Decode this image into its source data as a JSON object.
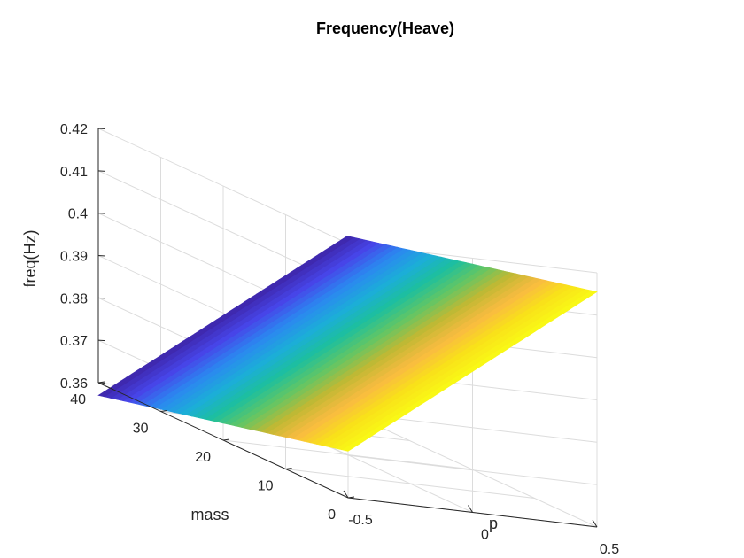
{
  "chart_data": {
    "type": "surface",
    "title": "Frequency(Heave)",
    "xlabel": "p",
    "ylabel": "mass",
    "zlabel": "freq(Hz)",
    "xlim": [
      -0.5,
      0.5
    ],
    "ylim": [
      0,
      40
    ],
    "zlim": [
      0.36,
      0.42
    ],
    "xticks": [
      -0.5,
      0,
      0.5
    ],
    "yticks": [
      0,
      10,
      20,
      30,
      40
    ],
    "zticks": [
      0.36,
      0.37,
      0.38,
      0.39,
      0.4,
      0.41,
      0.42
    ],
    "x_tick_labels": [
      "-0.5",
      "0",
      "0.5"
    ],
    "y_tick_labels": [
      "0",
      "10",
      "20",
      "30",
      "40"
    ],
    "z_tick_labels": [
      "0.36",
      "0.37",
      "0.38",
      "0.39",
      "0.4",
      "0.41",
      "0.42"
    ],
    "grid": true,
    "colormap": [
      "#3e26a8",
      "#4744e8",
      "#2c87f0",
      "#1cadd9",
      "#1dbf9e",
      "#62c665",
      "#c2b933",
      "#f9bb41",
      "#f9e11a",
      "#f9fb15"
    ],
    "surface": {
      "p": [
        -0.5,
        0.5
      ],
      "mass": [
        0,
        40
      ],
      "freq": [
        [
          0.371,
          0.357
        ],
        [
          0.4155,
          0.4015
        ]
      ]
    },
    "ridges": [
      {
        "p": -0.5,
        "freq_at_mass_40": 0.357,
        "freq_at_mass_0": 0.371
      },
      {
        "p": 0.5,
        "freq_at_mass_40": 0.4015,
        "freq_at_mass_0": 0.4155
      }
    ]
  }
}
